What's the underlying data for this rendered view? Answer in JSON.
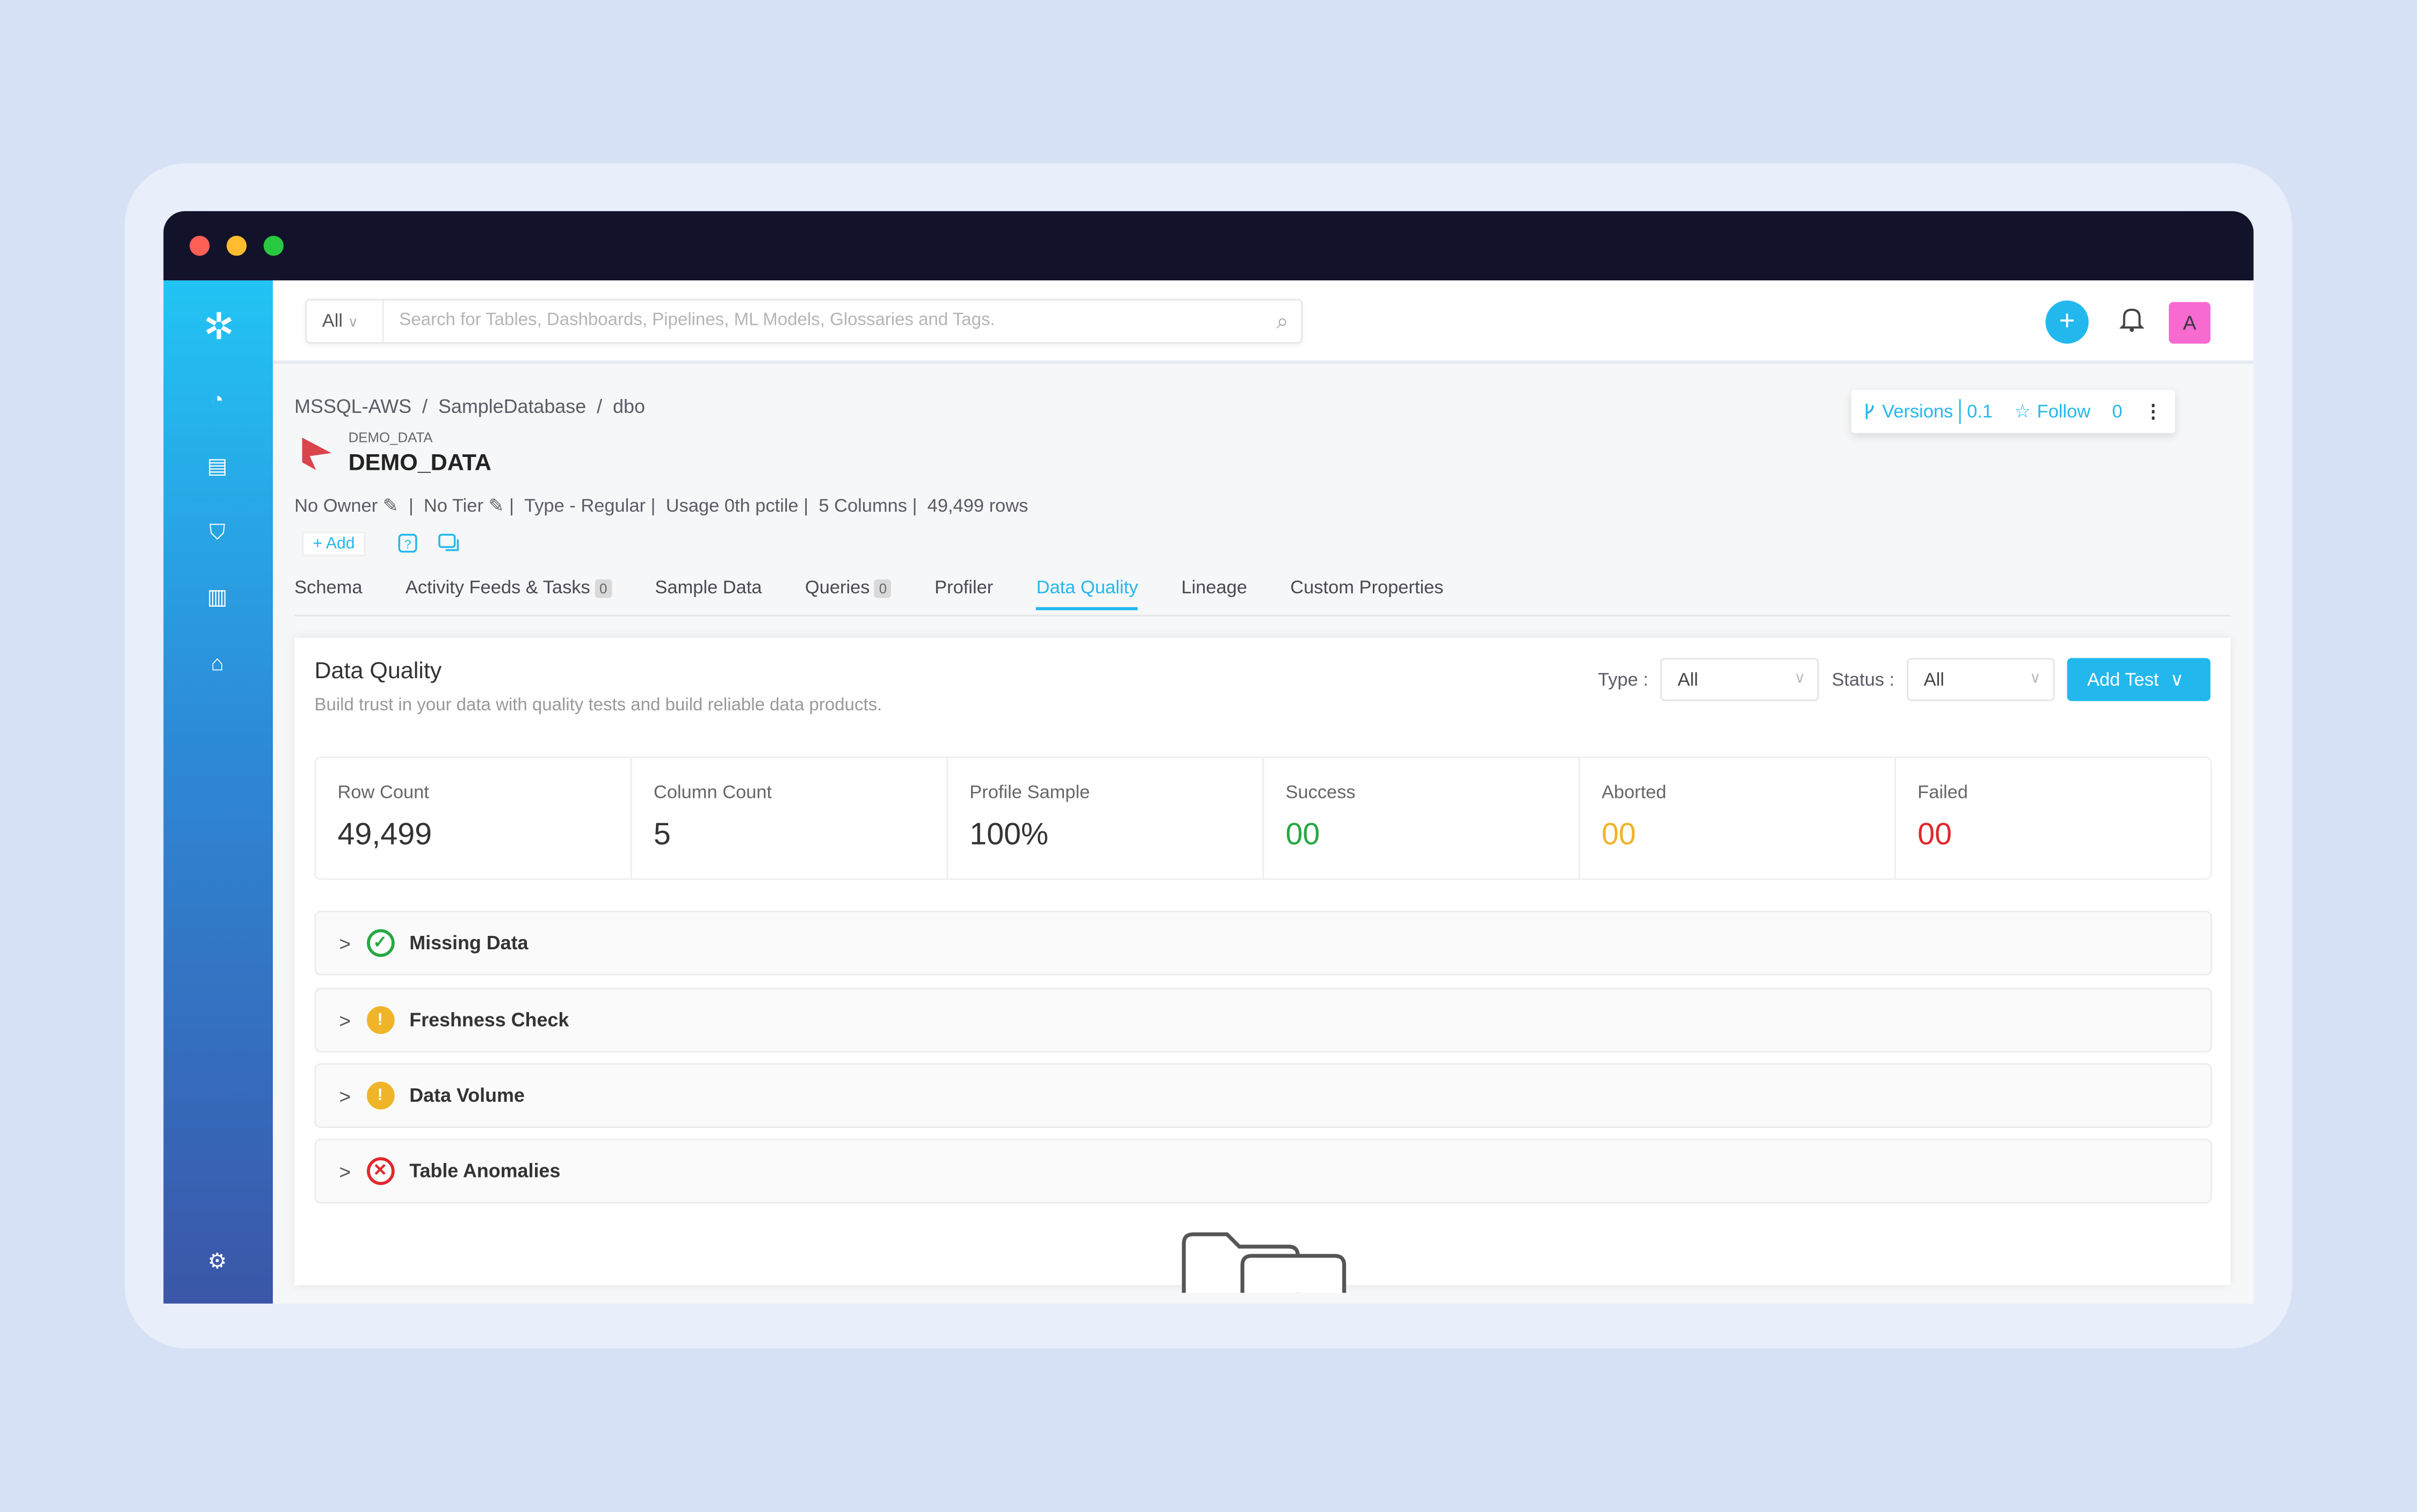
{
  "colors": {
    "accent": "#22b8ee",
    "success": "#28a745",
    "warning": "#f0b429",
    "failed": "#e0282e",
    "avatar": "#f76ad0"
  },
  "search": {
    "scope": "All",
    "placeholder": "Search for Tables, Dashboards, Pipelines, ML Models, Glossaries and Tags."
  },
  "header": {
    "avatar_letter": "A"
  },
  "breadcrumb": [
    "MSSQL-AWS",
    "SampleDatabase",
    "dbo"
  ],
  "entity": {
    "display_name": "DEMO_DATA",
    "name": "DEMO_DATA",
    "owner": "No Owner",
    "tier": "No Tier",
    "type": "Type - Regular",
    "usage": "Usage 0th pctile",
    "columns": "5 Columns",
    "rows": "49,499 rows",
    "add_label": "+ Add"
  },
  "actions": {
    "versions_label": "Versions",
    "versions_value": "0.1",
    "follow_label": "Follow",
    "follow_count": "0"
  },
  "tabs": [
    {
      "label": "Schema"
    },
    {
      "label": "Activity Feeds & Tasks",
      "count": "0"
    },
    {
      "label": "Sample Data"
    },
    {
      "label": "Queries",
      "count": "0"
    },
    {
      "label": "Profiler"
    },
    {
      "label": "Data Quality",
      "active": true
    },
    {
      "label": "Lineage"
    },
    {
      "label": "Custom Properties"
    }
  ],
  "dq": {
    "title": "Data Quality",
    "subtitle": "Build trust in your data with quality tests and build reliable data products.",
    "type_label": "Type :",
    "type_value": "All",
    "status_label": "Status :",
    "status_value": "All",
    "add_test": "Add Test"
  },
  "stats": [
    {
      "label": "Row Count",
      "value": "49,499"
    },
    {
      "label": "Column Count",
      "value": "5"
    },
    {
      "label": "Profile Sample",
      "value": "100%"
    },
    {
      "label": "Success",
      "value": "00"
    },
    {
      "label": "Aborted",
      "value": "00"
    },
    {
      "label": "Failed",
      "value": "00"
    }
  ],
  "checks": [
    {
      "name": "Missing Data",
      "status": "success"
    },
    {
      "name": "Freshness Check",
      "status": "warning"
    },
    {
      "name": "Data Volume",
      "status": "warning"
    },
    {
      "name": "Table Anomalies",
      "status": "failed"
    }
  ]
}
